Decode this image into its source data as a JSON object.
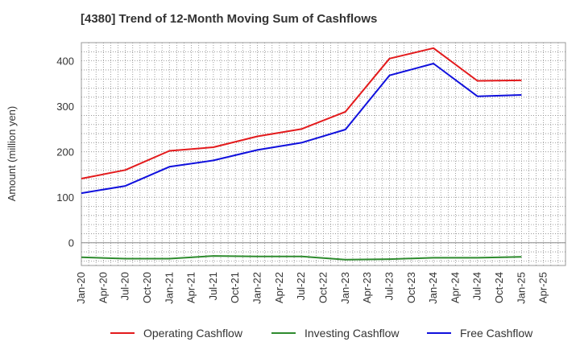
{
  "chart_data": {
    "type": "line",
    "title": "[4380]  Trend of 12-Month Moving Sum of Cashflows",
    "ylabel": "Amount (million yen)",
    "xlabel": "",
    "x_ticks": [
      "Jan-20",
      "Apr-20",
      "Jul-20",
      "Oct-20",
      "Jan-21",
      "Apr-21",
      "Jul-21",
      "Oct-21",
      "Jan-22",
      "Apr-22",
      "Jul-22",
      "Oct-22",
      "Jan-23",
      "Apr-23",
      "Jul-23",
      "Oct-23",
      "Jan-24",
      "Apr-24",
      "Jul-24",
      "Oct-24",
      "Jan-25",
      "Apr-25"
    ],
    "y_ticks": [
      0,
      100,
      200,
      300,
      400
    ],
    "ylim": [
      -50,
      440
    ],
    "grid": true,
    "legend_position": "bottom",
    "x": [
      "Jan-20",
      "Jul-20",
      "Jan-21",
      "Jul-21",
      "Jan-22",
      "Jul-22",
      "Jan-23",
      "Jul-23",
      "Jan-24",
      "Jul-24",
      "Jan-25"
    ],
    "series": [
      {
        "name": "Operating Cashflow",
        "color": "#e31a1c",
        "values": [
          141,
          160,
          202,
          210,
          234,
          250,
          288,
          405,
          428,
          356,
          357
        ]
      },
      {
        "name": "Investing Cashflow",
        "color": "#2e8b2e",
        "values": [
          -32,
          -35,
          -35,
          -29,
          -30,
          -30,
          -37,
          -36,
          -33,
          -33,
          -31
        ]
      },
      {
        "name": "Free Cashflow",
        "color": "#1010dd",
        "values": [
          109,
          125,
          167,
          181,
          204,
          220,
          249,
          368,
          394,
          322,
          325
        ]
      }
    ]
  }
}
